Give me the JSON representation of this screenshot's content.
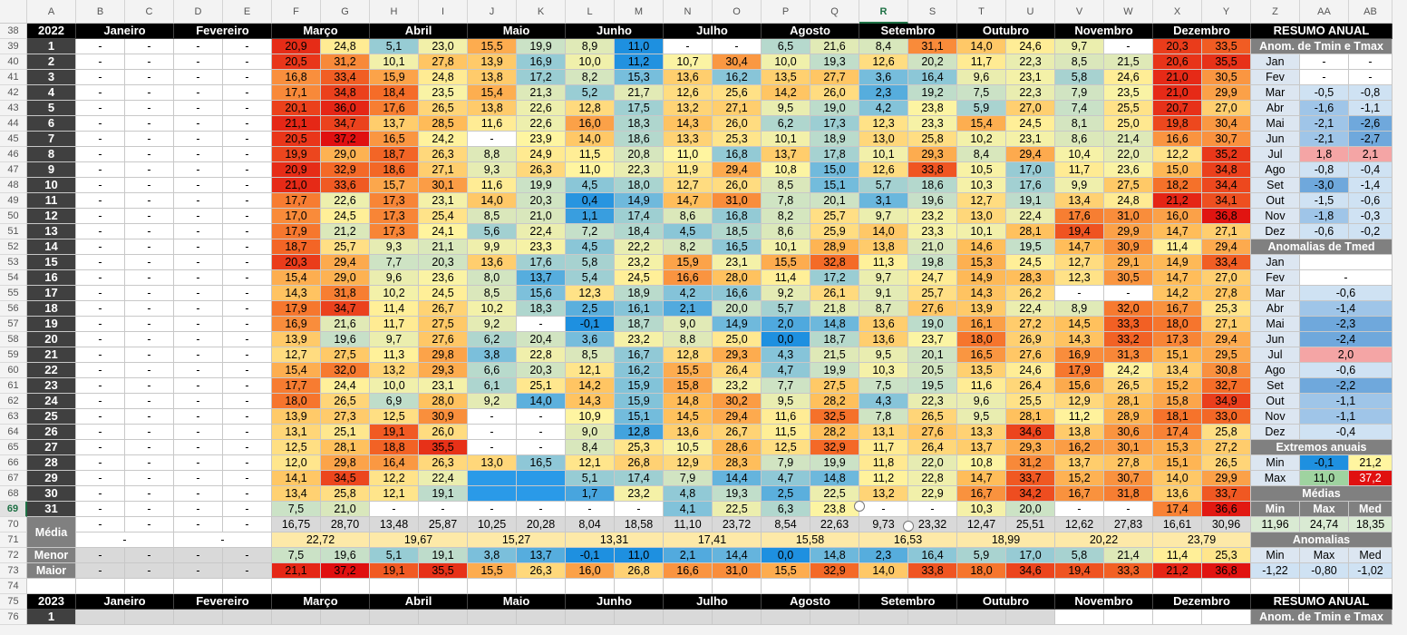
{
  "columns": [
    "A",
    "B",
    "C",
    "D",
    "E",
    "F",
    "G",
    "H",
    "I",
    "J",
    "K",
    "L",
    "M",
    "N",
    "O",
    "P",
    "Q",
    "R",
    "S",
    "T",
    "U",
    "V",
    "W",
    "X",
    "Y",
    "Z",
    "AA",
    "AB"
  ],
  "selected_column": "R",
  "rows": [
    "38",
    "39",
    "40",
    "41",
    "42",
    "43",
    "44",
    "45",
    "46",
    "47",
    "48",
    "49",
    "50",
    "51",
    "52",
    "53",
    "54",
    "55",
    "56",
    "57",
    "58",
    "59",
    "60",
    "61",
    "62",
    "63",
    "64",
    "65",
    "66",
    "67",
    "68",
    "69",
    "70",
    "71",
    "72",
    "73",
    "74",
    "75",
    "76"
  ],
  "selected_row": "69",
  "header_2022": {
    "year": "2022",
    "months": [
      "Janeiro",
      "Fevereiro",
      "Março",
      "Abril",
      "Maio",
      "Junho",
      "Julho",
      "Agosto",
      "Setembro",
      "Outubro",
      "Novembro",
      "Dezembro"
    ],
    "resumo": "RESUMO ANUAL"
  },
  "header_2023": {
    "year": "2023",
    "months": [
      "Janeiro",
      "Fevereiro",
      "Março",
      "Abril",
      "Maio",
      "Junho",
      "Julho",
      "Agosto",
      "Setembro",
      "Outubro",
      "Novembro",
      "Dezembro"
    ],
    "resumo": "RESUMO ANUAL"
  },
  "day_2023": "1",
  "resumo_2023_title": "Anom. de Tmin e Tmax",
  "days": [
    {
      "day": "1",
      "v": [
        "-",
        "-",
        "-",
        "-",
        "20,9",
        "24,8",
        "5,1",
        "23,0",
        "15,5",
        "19,9",
        "8,9",
        "11,0",
        "-",
        "-",
        "6,5",
        "21,6",
        "8,4",
        "31,1",
        "14,0",
        "24,6",
        "9,7",
        "-",
        "20,3",
        "33,5"
      ]
    },
    {
      "day": "2",
      "v": [
        "-",
        "-",
        "-",
        "-",
        "20,5",
        "31,2",
        "10,1",
        "27,8",
        "13,9",
        "16,9",
        "10,0",
        "11,2",
        "10,7",
        "30,4",
        "10,0",
        "19,3",
        "12,6",
        "20,2",
        "11,7",
        "22,3",
        "8,5",
        "21,5",
        "20,6",
        "35,5"
      ]
    },
    {
      "day": "3",
      "v": [
        "-",
        "-",
        "-",
        "-",
        "16,8",
        "33,4",
        "15,9",
        "24,8",
        "13,8",
        "17,2",
        "8,2",
        "15,3",
        "13,6",
        "16,2",
        "13,5",
        "27,7",
        "3,6",
        "16,4",
        "9,6",
        "23,1",
        "5,8",
        "24,6",
        "21,0",
        "30,5"
      ]
    },
    {
      "day": "4",
      "v": [
        "-",
        "-",
        "-",
        "-",
        "17,1",
        "34,8",
        "18,4",
        "23,5",
        "15,4",
        "21,3",
        "5,2",
        "21,7",
        "12,6",
        "25,6",
        "14,2",
        "26,0",
        "2,3",
        "19,2",
        "7,5",
        "22,3",
        "7,9",
        "23,5",
        "21,0",
        "29,9"
      ]
    },
    {
      "day": "5",
      "v": [
        "-",
        "-",
        "-",
        "-",
        "20,1",
        "36,0",
        "17,6",
        "26,5",
        "13,8",
        "22,6",
        "12,8",
        "17,5",
        "13,2",
        "27,1",
        "9,5",
        "19,0",
        "4,2",
        "23,8",
        "5,9",
        "27,0",
        "7,4",
        "25,5",
        "20,7",
        "27,0"
      ]
    },
    {
      "day": "6",
      "v": [
        "-",
        "-",
        "-",
        "-",
        "21,1",
        "34,7",
        "13,7",
        "28,5",
        "11,6",
        "22,6",
        "16,0",
        "18,3",
        "14,3",
        "26,0",
        "6,2",
        "17,3",
        "12,3",
        "23,3",
        "15,4",
        "24,5",
        "8,1",
        "25,0",
        "19,8",
        "30,4"
      ]
    },
    {
      "day": "7",
      "v": [
        "-",
        "-",
        "-",
        "-",
        "20,5",
        "37,2",
        "16,5",
        "24,2",
        "-",
        "23,9",
        "14,0",
        "18,6",
        "13,3",
        "25,3",
        "10,1",
        "18,9",
        "13,0",
        "25,8",
        "10,2",
        "23,1",
        "8,6",
        "21,4",
        "16,6",
        "30,7"
      ]
    },
    {
      "day": "8",
      "v": [
        "-",
        "-",
        "-",
        "-",
        "19,9",
        "29,0",
        "18,7",
        "26,3",
        "8,8",
        "24,9",
        "11,5",
        "20,8",
        "11,0",
        "16,8",
        "13,7",
        "17,8",
        "10,1",
        "29,3",
        "8,4",
        "29,4",
        "10,4",
        "22,0",
        "12,2",
        "35,2"
      ]
    },
    {
      "day": "9",
      "v": [
        "-",
        "-",
        "-",
        "-",
        "20,9",
        "32,9",
        "18,6",
        "27,1",
        "9,3",
        "26,3",
        "11,0",
        "22,3",
        "11,9",
        "29,4",
        "10,8",
        "15,0",
        "12,6",
        "33,8",
        "10,5",
        "17,0",
        "11,7",
        "23,6",
        "15,0",
        "34,8"
      ]
    },
    {
      "day": "10",
      "v": [
        "-",
        "-",
        "-",
        "-",
        "21,0",
        "33,6",
        "15,7",
        "30,1",
        "11,6",
        "19,9",
        "4,5",
        "18,0",
        "12,7",
        "26,0",
        "8,5",
        "15,1",
        "5,7",
        "18,6",
        "10,3",
        "17,6",
        "9,9",
        "27,5",
        "18,2",
        "34,4"
      ]
    },
    {
      "day": "11",
      "v": [
        "-",
        "-",
        "-",
        "-",
        "17,7",
        "22,6",
        "17,3",
        "23,1",
        "14,0",
        "20,3",
        "0,4",
        "14,9",
        "14,7",
        "31,0",
        "7,8",
        "20,1",
        "3,1",
        "19,6",
        "12,7",
        "19,1",
        "13,4",
        "24,8",
        "21,2",
        "34,1"
      ]
    },
    {
      "day": "12",
      "v": [
        "-",
        "-",
        "-",
        "-",
        "17,0",
        "24,5",
        "17,3",
        "25,4",
        "8,5",
        "21,0",
        "1,1",
        "17,4",
        "8,6",
        "16,8",
        "8,2",
        "25,7",
        "9,7",
        "23,2",
        "13,0",
        "22,4",
        "17,6",
        "31,0",
        "16,0",
        "36,8"
      ]
    },
    {
      "day": "13",
      "v": [
        "-",
        "-",
        "-",
        "-",
        "17,9",
        "21,2",
        "17,3",
        "24,1",
        "5,6",
        "22,4",
        "7,2",
        "18,4",
        "4,5",
        "18,5",
        "8,6",
        "25,9",
        "14,0",
        "23,3",
        "10,1",
        "28,1",
        "19,4",
        "29,9",
        "14,7",
        "27,1"
      ]
    },
    {
      "day": "14",
      "v": [
        "-",
        "-",
        "-",
        "-",
        "18,7",
        "25,7",
        "9,3",
        "21,1",
        "9,9",
        "23,3",
        "4,5",
        "22,2",
        "8,2",
        "16,5",
        "10,1",
        "28,9",
        "13,8",
        "21,0",
        "14,6",
        "19,5",
        "14,7",
        "30,9",
        "11,4",
        "29,4"
      ]
    },
    {
      "day": "15",
      "v": [
        "-",
        "-",
        "-",
        "-",
        "20,3",
        "29,4",
        "7,7",
        "20,3",
        "13,6",
        "17,6",
        "5,8",
        "23,2",
        "15,9",
        "23,1",
        "15,5",
        "32,8",
        "11,3",
        "19,8",
        "15,3",
        "24,5",
        "12,7",
        "29,1",
        "14,9",
        "33,4"
      ]
    },
    {
      "day": "16",
      "v": [
        "-",
        "-",
        "-",
        "-",
        "15,4",
        "29,0",
        "9,6",
        "23,6",
        "8,0",
        "13,7",
        "5,4",
        "24,5",
        "16,6",
        "28,0",
        "11,4",
        "17,2",
        "9,7",
        "24,7",
        "14,9",
        "28,3",
        "12,3",
        "30,5",
        "14,7",
        "27,0"
      ]
    },
    {
      "day": "17",
      "v": [
        "-",
        "-",
        "-",
        "-",
        "14,3",
        "31,8",
        "10,2",
        "24,5",
        "8,5",
        "15,6",
        "12,3",
        "18,9",
        "4,2",
        "16,6",
        "9,2",
        "26,1",
        "9,1",
        "25,7",
        "14,3",
        "26,2",
        "-",
        "-",
        "14,2",
        "27,8"
      ]
    },
    {
      "day": "18",
      "v": [
        "-",
        "-",
        "-",
        "-",
        "17,9",
        "34,7",
        "11,4",
        "26,7",
        "10,2",
        "18,3",
        "2,5",
        "16,1",
        "2,1",
        "20,0",
        "5,7",
        "21,8",
        "8,7",
        "27,6",
        "13,9",
        "22,4",
        "8,9",
        "32,0",
        "16,7",
        "25,3"
      ]
    },
    {
      "day": "19",
      "v": [
        "-",
        "-",
        "-",
        "-",
        "16,9",
        "21,6",
        "11,7",
        "27,5",
        "9,2",
        "-",
        "-0,1",
        "18,7",
        "9,0",
        "14,9",
        "2,0",
        "14,8",
        "13,6",
        "19,0",
        "16,1",
        "27,2",
        "14,5",
        "33,3",
        "18,0",
        "27,1"
      ]
    },
    {
      "day": "20",
      "v": [
        "-",
        "-",
        "-",
        "-",
        "13,9",
        "19,6",
        "9,7",
        "27,6",
        "6,2",
        "20,4",
        "3,6",
        "23,2",
        "8,8",
        "25,0",
        "0,0",
        "18,7",
        "13,6",
        "23,7",
        "18,0",
        "26,9",
        "14,3",
        "33,2",
        "17,3",
        "29,4"
      ]
    },
    {
      "day": "21",
      "v": [
        "-",
        "-",
        "-",
        "-",
        "12,7",
        "27,5",
        "11,3",
        "29,8",
        "3,8",
        "22,8",
        "8,5",
        "16,7",
        "12,8",
        "29,3",
        "4,3",
        "21,5",
        "9,5",
        "20,1",
        "16,5",
        "27,6",
        "16,9",
        "31,3",
        "15,1",
        "29,5"
      ]
    },
    {
      "day": "22",
      "v": [
        "-",
        "-",
        "-",
        "-",
        "15,4",
        "32,0",
        "13,2",
        "29,3",
        "6,6",
        "20,3",
        "12,1",
        "16,2",
        "15,5",
        "26,4",
        "4,7",
        "19,9",
        "10,3",
        "20,5",
        "13,5",
        "24,6",
        "17,9",
        "24,2",
        "13,4",
        "30,8"
      ]
    },
    {
      "day": "23",
      "v": [
        "-",
        "-",
        "-",
        "-",
        "17,7",
        "24,4",
        "10,0",
        "23,1",
        "6,1",
        "25,1",
        "14,2",
        "15,9",
        "15,8",
        "23,2",
        "7,7",
        "27,5",
        "7,5",
        "19,5",
        "11,6",
        "26,4",
        "15,6",
        "26,5",
        "15,2",
        "32,7"
      ]
    },
    {
      "day": "24",
      "v": [
        "-",
        "-",
        "-",
        "-",
        "18,0",
        "26,5",
        "6,9",
        "28,0",
        "9,2",
        "14,0",
        "14,3",
        "15,9",
        "14,8",
        "30,2",
        "9,5",
        "28,2",
        "4,3",
        "22,3",
        "9,6",
        "25,5",
        "12,9",
        "28,1",
        "15,8",
        "34,9"
      ]
    },
    {
      "day": "25",
      "v": [
        "-",
        "-",
        "-",
        "-",
        "13,9",
        "27,3",
        "12,5",
        "30,9",
        "-",
        "-",
        "10,9",
        "15,1",
        "14,5",
        "29,4",
        "11,6",
        "32,5",
        "7,8",
        "26,5",
        "9,5",
        "28,1",
        "11,2",
        "28,9",
        "18,1",
        "33,0"
      ]
    },
    {
      "day": "26",
      "v": [
        "-",
        "-",
        "-",
        "-",
        "13,1",
        "25,1",
        "19,1",
        "26,0",
        "-",
        "-",
        "9,0",
        "12,8",
        "13,6",
        "26,7",
        "11,5",
        "28,2",
        "13,1",
        "27,6",
        "13,3",
        "34,6",
        "13,8",
        "30,6",
        "17,4",
        "25,8"
      ]
    },
    {
      "day": "27",
      "v": [
        "-",
        "-",
        "-",
        "-",
        "12,5",
        "28,1",
        "18,8",
        "35,5",
        "-",
        "-",
        "8,4",
        "25,3",
        "10,5",
        "28,6",
        "12,5",
        "32,9",
        "11,7",
        "26,4",
        "13,7",
        "29,3",
        "16,2",
        "30,1",
        "15,3",
        "27,2"
      ]
    },
    {
      "day": "28",
      "v": [
        "-",
        "-",
        "-",
        "-",
        "12,0",
        "29,8",
        "16,4",
        "26,3",
        "13,0",
        "16,5",
        "12,1",
        "26,8",
        "12,9",
        "28,3",
        "7,9",
        "19,9",
        "11,8",
        "22,0",
        "10,8",
        "31,2",
        "13,7",
        "27,8",
        "15,1",
        "26,5"
      ]
    },
    {
      "day": "29",
      "v": [
        "-",
        "-",
        "-",
        "-",
        "14,1",
        "34,5",
        "12,2",
        "22,4",
        "",
        "",
        "5,1",
        "17,4",
        "7,9",
        "14,4",
        "4,7",
        "14,8",
        "11,2",
        "22,8",
        "14,7",
        "33,7",
        "15,2",
        "30,7",
        "14,0",
        "29,9"
      ]
    },
    {
      "day": "30",
      "v": [
        "-",
        "-",
        "-",
        "-",
        "13,4",
        "25,8",
        "12,1",
        "19,1",
        "",
        "",
        "1,7",
        "23,2",
        "4,8",
        "19,3",
        "2,5",
        "22,5",
        "13,2",
        "22,9",
        "16,7",
        "34,2",
        "16,7",
        "31,8",
        "13,6",
        "33,7"
      ]
    },
    {
      "day": "31",
      "v": [
        "-",
        "-",
        "-",
        "-",
        "7,5",
        "21,0",
        "-",
        "-",
        "-",
        "-",
        "-",
        "-",
        "4,1",
        "22,5",
        "6,3",
        "23,8",
        "-",
        "-",
        "10,3",
        "20,0",
        "-",
        "-",
        "17,4",
        "36,6"
      ]
    }
  ],
  "media_label": "Média",
  "media_row": [
    "-",
    "-",
    "-",
    "-",
    "16,75",
    "28,70",
    "13,48",
    "25,87",
    "10,25",
    "20,28",
    "8,04",
    "18,58",
    "11,10",
    "23,72",
    "8,54",
    "22,63",
    "9,73",
    "23,32",
    "12,47",
    "25,51",
    "12,62",
    "27,83",
    "16,61",
    "30,96"
  ],
  "media_avg": [
    "-",
    "-",
    "22,72",
    "19,67",
    "15,27",
    "13,31",
    "17,41",
    "15,58",
    "16,53",
    "18,99",
    "20,22",
    "23,79"
  ],
  "menor_label": "Menor",
  "menor_row": [
    "-",
    "-",
    "-",
    "-",
    "7,5",
    "19,6",
    "5,1",
    "19,1",
    "3,8",
    "13,7",
    "-0,1",
    "11,0",
    "2,1",
    "14,4",
    "0,0",
    "14,8",
    "2,3",
    "16,4",
    "5,9",
    "17,0",
    "5,8",
    "21,4",
    "11,4",
    "25,3"
  ],
  "maior_label": "Maior",
  "maior_row": [
    "-",
    "-",
    "-",
    "-",
    "21,1",
    "37,2",
    "19,1",
    "35,5",
    "15,5",
    "26,3",
    "16,0",
    "26,8",
    "16,6",
    "31,0",
    "15,5",
    "32,9",
    "14,0",
    "33,8",
    "18,0",
    "34,6",
    "19,4",
    "33,3",
    "21,2",
    "36,8"
  ],
  "resumo": {
    "anom_title": "Anom. de Tmin e Tmax",
    "anom": [
      {
        "m": "Jan",
        "a": "-",
        "b": "-"
      },
      {
        "m": "Fev",
        "a": "-",
        "b": "-"
      },
      {
        "m": "Mar",
        "a": "-0,5",
        "b": "-0,8"
      },
      {
        "m": "Abr",
        "a": "-1,6",
        "b": "-1,1"
      },
      {
        "m": "Mai",
        "a": "-2,1",
        "b": "-2,6"
      },
      {
        "m": "Jun",
        "a": "-2,1",
        "b": "-2,7"
      },
      {
        "m": "Jul",
        "a": "1,8",
        "b": "2,1"
      },
      {
        "m": "Ago",
        "a": "-0,8",
        "b": "-0,4"
      },
      {
        "m": "Set",
        "a": "-3,0",
        "b": "-1,4"
      },
      {
        "m": "Out",
        "a": "-1,5",
        "b": "-0,6"
      },
      {
        "m": "Nov",
        "a": "-1,8",
        "b": "-0,3"
      },
      {
        "m": "Dez",
        "a": "-0,6",
        "b": "-0,2"
      }
    ],
    "tmed_title": "Anomalias de Tmed",
    "tmed": [
      {
        "m": "Jan",
        "a": ""
      },
      {
        "m": "Fev",
        "a": "-"
      },
      {
        "m": "Mar",
        "a": "-0,6"
      },
      {
        "m": "Abr",
        "a": "-1,4"
      },
      {
        "m": "Mai",
        "a": "-2,3"
      },
      {
        "m": "Jun",
        "a": "-2,4"
      },
      {
        "m": "Jul",
        "a": "2,0"
      },
      {
        "m": "Ago",
        "a": "-0,6"
      },
      {
        "m": "Set",
        "a": "-2,2"
      },
      {
        "m": "Out",
        "a": "-1,1"
      },
      {
        "m": "Nov",
        "a": "-1,1"
      },
      {
        "m": "Dez",
        "a": "-0,4"
      }
    ],
    "extremos_title": "Extremos anuais",
    "min_label": "Min",
    "min_a": "-0,1",
    "min_b": "21,2",
    "max_label": "Max",
    "max_a": "11,0",
    "max_b": "37,2",
    "medias_title": "Médias",
    "medias_hdr": [
      "Min",
      "Max",
      "Med"
    ],
    "medias_vals": [
      "11,96",
      "24,74",
      "18,35"
    ],
    "anomalias_title": "Anomalias",
    "anomalias_hdr": [
      "Min",
      "Max",
      "Med"
    ],
    "anomalias_vals": [
      "-1,22",
      "-0,80",
      "-1,02"
    ]
  },
  "colors": {
    "header": "#000000",
    "day": "#404040",
    "cold": "#1e90e0",
    "hot": "#e01010",
    "neutral": "#fff5a0"
  }
}
